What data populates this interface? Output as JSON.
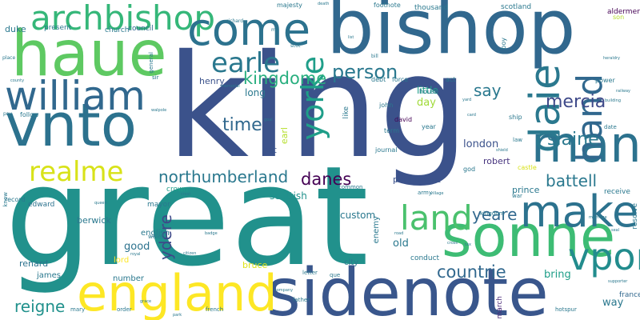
{
  "words": [
    {
      "text": "king",
      "color": "#3b528b"
    },
    {
      "text": "great",
      "color": "#21918c"
    },
    {
      "text": "bishop",
      "color": "#31688e"
    },
    {
      "text": "sidenote",
      "color": "#39568c"
    },
    {
      "text": "haue",
      "color": "#5ec962"
    },
    {
      "text": "vnto",
      "color": "#2c728e"
    },
    {
      "text": "william",
      "color": "#31688e"
    },
    {
      "text": "sonne",
      "color": "#3dbc74"
    },
    {
      "text": "archbishop",
      "color": "#35b779"
    },
    {
      "text": "man",
      "color": "#2c728e"
    },
    {
      "text": "come",
      "color": "#2c728e"
    },
    {
      "text": "england",
      "color": "#fde725"
    },
    {
      "text": "make",
      "color": "#2c728e"
    },
    {
      "text": "realme",
      "color": "#d8e219"
    },
    {
      "text": "daie",
      "color": "#2a788e"
    },
    {
      "text": "hand",
      "color": "#31688e"
    },
    {
      "text": "earle",
      "color": "#2a788e"
    },
    {
      "text": "yorke",
      "color": "#1f9e89"
    },
    {
      "text": "land",
      "color": "#4ac16d"
    },
    {
      "text": "vpon",
      "color": "#228c8d"
    },
    {
      "text": "northumberland",
      "color": "#2a788e"
    },
    {
      "text": "kingdome",
      "color": "#29af7f"
    },
    {
      "text": "person",
      "color": "#2a788e"
    },
    {
      "text": "mercia",
      "color": "#3e4989"
    },
    {
      "text": "slaine",
      "color": "#2a788e"
    },
    {
      "text": "battell",
      "color": "#2a788e"
    },
    {
      "text": "time",
      "color": "#31688e"
    },
    {
      "text": "danes",
      "color": "#440154"
    },
    {
      "text": "countrie",
      "color": "#31688e"
    },
    {
      "text": "yeare",
      "color": "#31688e"
    },
    {
      "text": "reigne",
      "color": "#21918c"
    },
    {
      "text": "say",
      "color": "#2a788e"
    },
    {
      "text": "ydere",
      "color": "#3e4989"
    },
    {
      "text": "london",
      "color": "#3b528b"
    },
    {
      "text": "little",
      "color": "#1f9e89"
    },
    {
      "text": "good",
      "color": "#2c728e"
    },
    {
      "text": "bring",
      "color": "#1f9e89"
    },
    {
      "text": "old",
      "color": "#2a788e"
    },
    {
      "text": "day",
      "color": "#a0da39"
    },
    {
      "text": "way",
      "color": "#2a788e"
    },
    {
      "text": "scottish",
      "color": "#21918c"
    },
    {
      "text": "custom",
      "color": "#2a788e"
    },
    {
      "text": "parliament",
      "color": "#3b528b"
    },
    {
      "text": "robert",
      "color": "#46337e"
    },
    {
      "text": "prince",
      "color": "#2a788e"
    },
    {
      "text": "bruce",
      "color": "#dde318"
    },
    {
      "text": "long",
      "color": "#2a788e"
    },
    {
      "text": "henry",
      "color": "#3b528b"
    },
    {
      "text": "set",
      "color": "#3b528b"
    },
    {
      "text": "earl",
      "color": "#b5de2b"
    },
    {
      "text": "berwick",
      "color": "#2a788e"
    },
    {
      "text": "renard",
      "color": "#2c728e"
    },
    {
      "text": "english",
      "color": "#2a788e"
    },
    {
      "text": "james",
      "color": "#2a788e"
    },
    {
      "text": "number",
      "color": "#2a788e"
    },
    {
      "text": "edward",
      "color": "#2c728e"
    },
    {
      "text": "crown",
      "color": "#1f9e89"
    },
    {
      "text": "mayor",
      "color": "#2a788e"
    },
    {
      "text": "lord",
      "color": "#fde725"
    },
    {
      "text": "city",
      "color": "#2a788e"
    },
    {
      "text": "enemy",
      "color": "#2a788e"
    },
    {
      "text": "conduct",
      "color": "#2a788e"
    },
    {
      "text": "march",
      "color": "#482878"
    },
    {
      "text": "france",
      "color": "#31688e"
    },
    {
      "text": "receive",
      "color": "#2a788e"
    },
    {
      "text": "resolve",
      "color": "#2a788e"
    },
    {
      "text": "aldermen",
      "color": "#440154"
    },
    {
      "text": "duke",
      "color": "#2a788e"
    },
    {
      "text": "present",
      "color": "#2a788e"
    },
    {
      "text": "church",
      "color": "#2a788e"
    },
    {
      "text": "council",
      "color": "#31688e"
    },
    {
      "text": "thousand",
      "color": "#2a788e"
    },
    {
      "text": "scotland",
      "color": "#2a788e"
    },
    {
      "text": "footnote",
      "color": "#2a788e"
    },
    {
      "text": "majesty",
      "color": "#2a788e"
    },
    {
      "text": "force",
      "color": "#2a788e"
    },
    {
      "text": "debt",
      "color": "#2a788e"
    },
    {
      "text": "house",
      "color": "#2a788e"
    },
    {
      "text": "act",
      "color": "#2a788e"
    },
    {
      "text": "power",
      "color": "#2a788e"
    },
    {
      "text": "ship",
      "color": "#2a788e"
    },
    {
      "text": "john",
      "color": "#2a788e"
    },
    {
      "text": "david",
      "color": "#440154"
    },
    {
      "text": "term",
      "color": "#2a788e"
    },
    {
      "text": "year",
      "color": "#2a788e"
    },
    {
      "text": "journal",
      "color": "#2a788e"
    },
    {
      "text": "army",
      "color": "#2a788e"
    },
    {
      "text": "common",
      "color": "#2a788e"
    },
    {
      "text": "god",
      "color": "#2a788e"
    },
    {
      "text": "law",
      "color": "#2a788e"
    },
    {
      "text": "castle",
      "color": "#d8e219"
    },
    {
      "text": "war",
      "color": "#2a788e"
    },
    {
      "text": "kingdom",
      "color": "#2a788e"
    },
    {
      "text": "date",
      "color": "#2a788e"
    },
    {
      "text": "son",
      "color": "#b5de2b"
    },
    {
      "text": "boy",
      "color": "#2a788e"
    },
    {
      "text": "like",
      "color": "#2a788e"
    },
    {
      "text": "follow",
      "color": "#2a788e"
    },
    {
      "text": "sir",
      "color": "#2a788e"
    },
    {
      "text": "general",
      "color": "#2a788e"
    },
    {
      "text": "wales",
      "color": "#2a788e"
    },
    {
      "text": "que",
      "color": "#2a788e"
    },
    {
      "text": "letter",
      "color": "#2a788e"
    },
    {
      "text": "father",
      "color": "#2a788e"
    },
    {
      "text": "order",
      "color": "#2a788e"
    },
    {
      "text": "mary",
      "color": "#2a788e"
    },
    {
      "text": "hotspur",
      "color": "#2a788e"
    },
    {
      "text": "french",
      "color": "#2a788e"
    },
    {
      "text": "record",
      "color": "#2a788e"
    },
    {
      "text": "know",
      "color": "#2a788e"
    },
    {
      "text": "place",
      "color": "#2a788e"
    },
    {
      "text": "pay",
      "color": "#2a788e"
    },
    {
      "text": "richard",
      "color": "#2a788e"
    },
    {
      "text": "bill",
      "color": "#2a788e"
    },
    {
      "text": "ms",
      "color": "#2a788e"
    },
    {
      "text": "scot",
      "color": "#2a788e"
    },
    {
      "text": "death",
      "color": "#2a788e"
    },
    {
      "text": "heraldry",
      "color": "#2a788e"
    },
    {
      "text": "citizen",
      "color": "#2a788e"
    },
    {
      "text": "walpole",
      "color": "#2a788e"
    },
    {
      "text": "shield",
      "color": "#2a788e"
    },
    {
      "text": "road",
      "color": "#2a788e"
    },
    {
      "text": "cross",
      "color": "#2a788e"
    },
    {
      "text": "seal",
      "color": "#2a788e"
    },
    {
      "text": "badge",
      "color": "#2a788e"
    },
    {
      "text": "crest",
      "color": "#2a788e"
    },
    {
      "text": "royal",
      "color": "#2a788e"
    },
    {
      "text": "yard",
      "color": "#2a788e"
    },
    {
      "text": "card",
      "color": "#2a788e"
    },
    {
      "text": "tax",
      "color": "#2a788e"
    },
    {
      "text": "goal",
      "color": "#2a788e"
    },
    {
      "text": "grace",
      "color": "#2a788e"
    },
    {
      "text": "village",
      "color": "#2a788e"
    },
    {
      "text": "marriage",
      "color": "#2a788e"
    },
    {
      "text": "company",
      "color": "#2a788e"
    },
    {
      "text": "building",
      "color": "#2a788e"
    },
    {
      "text": "supporter",
      "color": "#2a788e"
    },
    {
      "text": "railway",
      "color": "#2a788e"
    },
    {
      "text": "memorial",
      "color": "#2a788e"
    },
    {
      "text": "queen",
      "color": "#2a788e"
    },
    {
      "text": "county",
      "color": "#2a788e"
    },
    {
      "text": "park",
      "color": "#2a788e"
    },
    {
      "text": "list",
      "color": "#2a788e"
    }
  ]
}
